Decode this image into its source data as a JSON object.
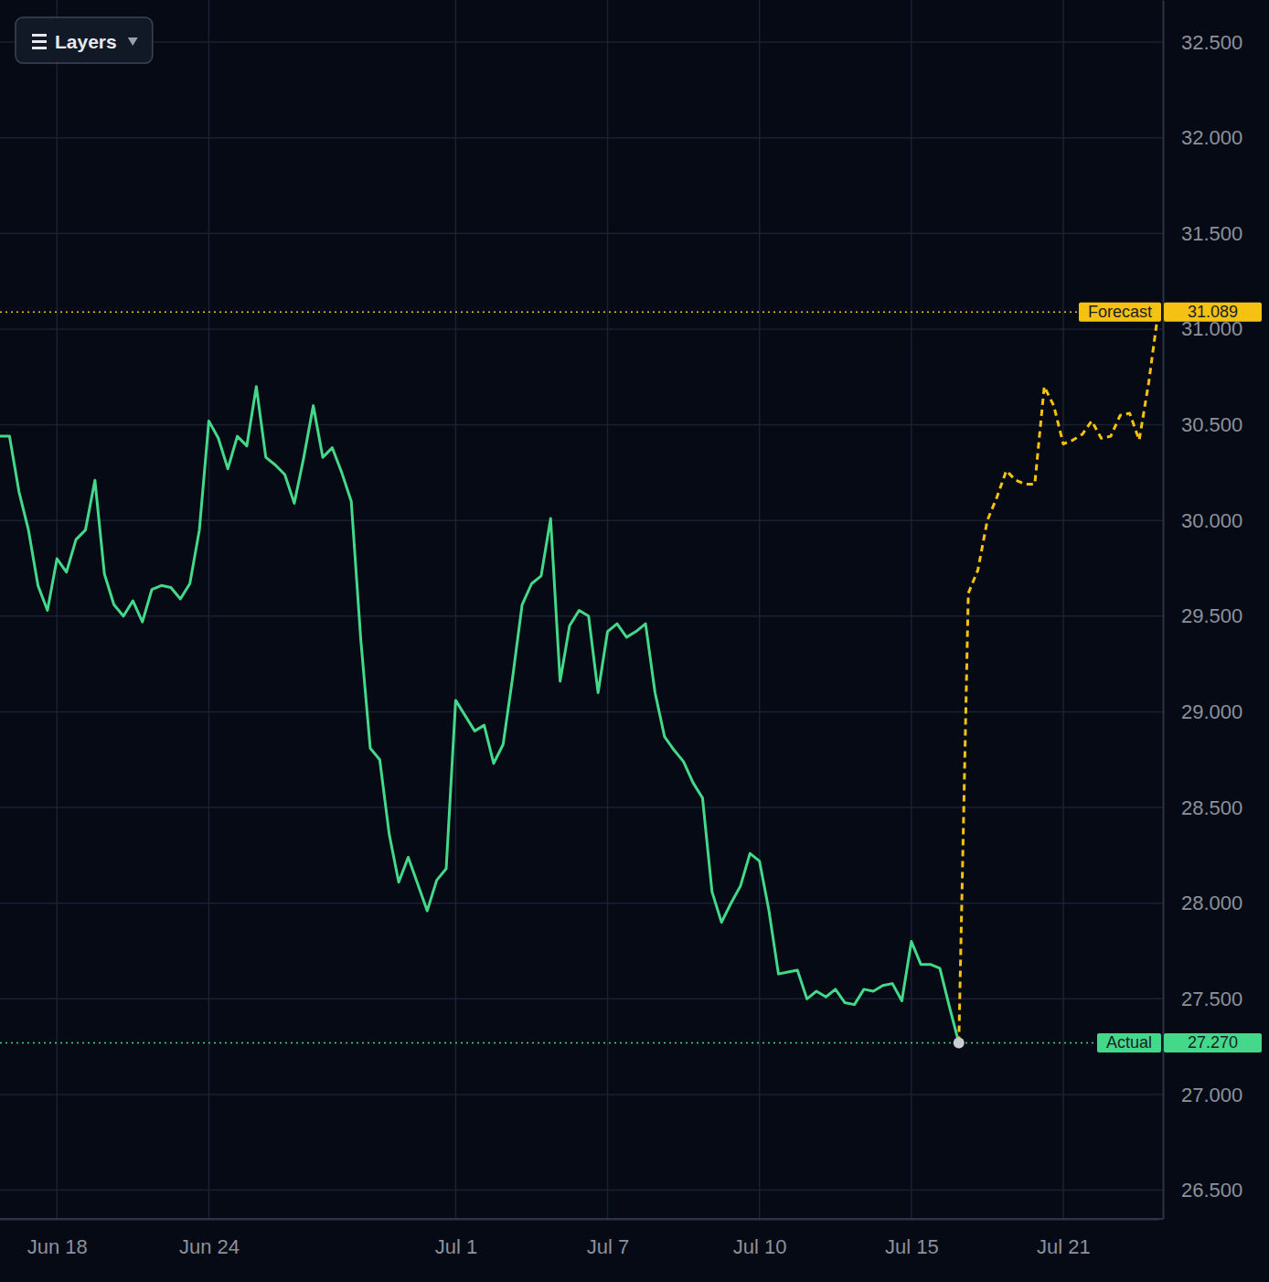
{
  "chart_data": {
    "type": "line",
    "categories": [
      null,
      null,
      null,
      null,
      null,
      null,
      "Jun 18",
      null,
      null,
      null,
      null,
      null,
      null,
      null,
      null,
      null,
      null,
      null,
      null,
      null,
      null,
      null,
      "Jun 24",
      null,
      null,
      null,
      null,
      null,
      null,
      null,
      null,
      null,
      null,
      null,
      null,
      null,
      null,
      null,
      null,
      null,
      null,
      null,
      null,
      null,
      null,
      null,
      null,
      null,
      "Jul 1",
      null,
      null,
      null,
      null,
      null,
      null,
      null,
      null,
      null,
      null,
      null,
      null,
      null,
      null,
      null,
      "Jul 7",
      null,
      null,
      null,
      null,
      null,
      null,
      null,
      null,
      null,
      null,
      null,
      null,
      null,
      null,
      null,
      "Jul 10",
      null,
      null,
      null,
      null,
      null,
      null,
      null,
      null,
      null,
      null,
      null,
      null,
      null,
      null,
      null,
      "Jul 15",
      null,
      null,
      null,
      null,
      null,
      null,
      null,
      null,
      null,
      null,
      null,
      null,
      null,
      null,
      null,
      "Jul 21",
      null,
      null,
      null,
      null,
      null,
      null,
      null,
      null,
      null,
      null
    ],
    "series": [
      {
        "name": "Actual",
        "color": "#44d98a",
        "line_style": "solid",
        "end_label": "27.270",
        "values": [
          30.44,
          30.44,
          30.15,
          29.95,
          29.66,
          29.53,
          29.8,
          29.73,
          29.9,
          29.95,
          30.21,
          29.72,
          29.56,
          29.5,
          29.58,
          29.47,
          29.64,
          29.66,
          29.65,
          29.59,
          29.67,
          29.95,
          30.52,
          30.43,
          30.27,
          30.44,
          30.39,
          30.7,
          30.33,
          30.29,
          30.24,
          30.09,
          30.33,
          30.6,
          30.33,
          30.38,
          30.25,
          30.1,
          29.38,
          28.81,
          28.75,
          28.36,
          28.11,
          28.24,
          28.1,
          27.96,
          28.12,
          28.18,
          29.06,
          28.98,
          28.9,
          28.93,
          28.73,
          28.83,
          29.18,
          29.56,
          29.67,
          29.71,
          30.01,
          29.16,
          29.45,
          29.53,
          29.5,
          29.1,
          29.42,
          29.46,
          29.39,
          29.42,
          29.46,
          29.1,
          28.87,
          28.8,
          28.74,
          28.63,
          28.55,
          28.06,
          27.9,
          28.0,
          28.09,
          28.26,
          28.22,
          27.96,
          27.63,
          27.64,
          27.65,
          27.5,
          27.54,
          27.51,
          27.55,
          27.48,
          27.47,
          27.55,
          27.54,
          27.57,
          27.58,
          27.49,
          27.8,
          27.68,
          27.68,
          27.66,
          27.46,
          27.27,
          null,
          null,
          null,
          null,
          null,
          null,
          null,
          null,
          null,
          null,
          null,
          null,
          null,
          null,
          null,
          null,
          null,
          null,
          null,
          null,
          null
        ]
      },
      {
        "name": "Forecast",
        "color": "#f5c211",
        "line_style": "dashed",
        "end_label": "31.089",
        "values": [
          null,
          null,
          null,
          null,
          null,
          null,
          null,
          null,
          null,
          null,
          null,
          null,
          null,
          null,
          null,
          null,
          null,
          null,
          null,
          null,
          null,
          null,
          null,
          null,
          null,
          null,
          null,
          null,
          null,
          null,
          null,
          null,
          null,
          null,
          null,
          null,
          null,
          null,
          null,
          null,
          null,
          null,
          null,
          null,
          null,
          null,
          null,
          null,
          null,
          null,
          null,
          null,
          null,
          null,
          null,
          null,
          null,
          null,
          null,
          null,
          null,
          null,
          null,
          null,
          null,
          null,
          null,
          null,
          null,
          null,
          null,
          null,
          null,
          null,
          null,
          null,
          null,
          null,
          null,
          null,
          null,
          null,
          null,
          null,
          null,
          null,
          null,
          null,
          null,
          null,
          null,
          null,
          null,
          null,
          null,
          null,
          null,
          null,
          null,
          null,
          null,
          27.27,
          29.62,
          29.74,
          30.0,
          30.12,
          30.26,
          30.21,
          30.19,
          30.19,
          30.7,
          30.6,
          30.4,
          30.42,
          30.45,
          30.52,
          30.43,
          30.44,
          30.55,
          30.56,
          30.42,
          30.72,
          31.089
        ]
      }
    ],
    "ylim": [
      26.35,
      32.72
    ],
    "yticks": [
      {
        "value": 26.5,
        "label": "26.500"
      },
      {
        "value": 27,
        "label": "27.000"
      },
      {
        "value": 27.5,
        "label": "27.500"
      },
      {
        "value": 28,
        "label": "28.000"
      },
      {
        "value": 28.5,
        "label": "28.500"
      },
      {
        "value": 29,
        "label": "29.000"
      },
      {
        "value": 29.5,
        "label": "29.500"
      },
      {
        "value": 30,
        "label": "30.000"
      },
      {
        "value": 30.5,
        "label": "30.500"
      },
      {
        "value": 31,
        "label": "31.000"
      },
      {
        "value": 31.5,
        "label": "31.500"
      },
      {
        "value": 32,
        "label": "32.000"
      },
      {
        "value": 32.5,
        "label": "32.500"
      }
    ],
    "grid": true
  },
  "toolbar": {
    "button": "Layers"
  }
}
